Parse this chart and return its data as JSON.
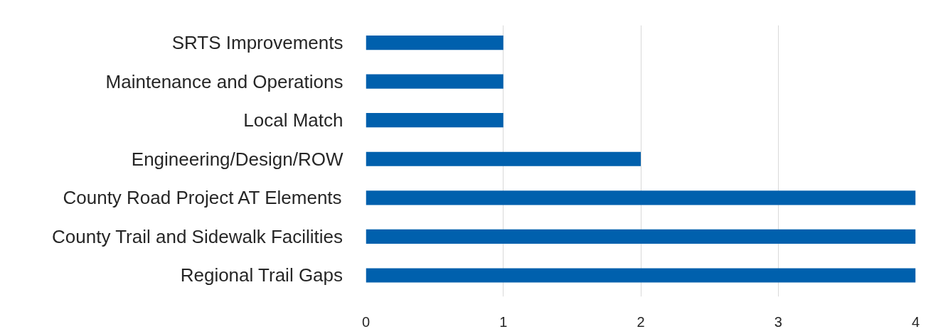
{
  "chart_data": {
    "type": "bar",
    "orientation": "horizontal",
    "categories": [
      "SRTS Improvements",
      "Maintenance and Operations",
      "Local Match",
      "Engineering/Design/ROW",
      "County Road Project AT Elements",
      "County Trail and Sidewalk Facilities",
      "Regional Trail Gaps"
    ],
    "values": [
      1,
      1,
      1,
      2,
      4,
      4,
      4
    ],
    "color": "#0060ad",
    "xlim": [
      0,
      4
    ],
    "xticks": [
      0,
      1,
      2,
      3,
      4
    ],
    "grid": "x"
  }
}
